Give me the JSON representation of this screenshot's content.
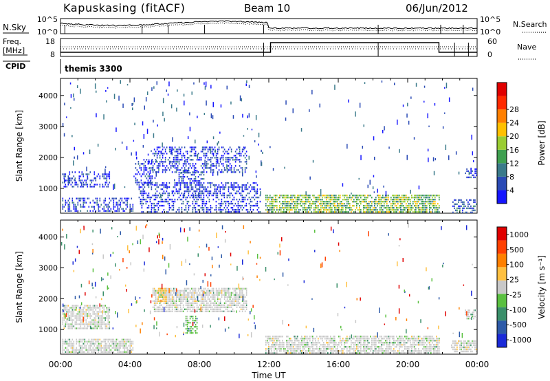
{
  "header": {
    "station": "Kapuskasing (fitACF)",
    "beam": "Beam 10",
    "date": "06/Jun/2012"
  },
  "top_panels": {
    "nsky_label": "N.Sky",
    "nsky_ticks": [
      "10^5",
      "10^0"
    ],
    "nsearch_label": "N.Search",
    "nsearch_ticks": [
      "10^5",
      "10^0"
    ],
    "freq_label": "Freq.",
    "freq_unit": "[MHz]",
    "freq_ticks": [
      "18",
      "8"
    ],
    "nave_label": "Nave",
    "nave_ticks": [
      "60",
      "0"
    ],
    "cpid_label": "CPID",
    "cpid_value": "themis 3300"
  },
  "chart_data": [
    {
      "type": "heatmap",
      "name": "power",
      "ylabel": "Slant Range [km]",
      "xlabel": "",
      "ylim": [
        200,
        4550
      ],
      "xlim": [
        0,
        24
      ],
      "yticks": [
        1000,
        2000,
        3000,
        4000
      ],
      "ytick_labels": [
        "1000",
        "2000",
        "3000",
        "4000"
      ],
      "colorbar": {
        "label": "Power [dB]",
        "ticks": [
          "4",
          "8",
          "12",
          "16",
          "20",
          "24",
          "28"
        ],
        "colors": [
          "#1515ff",
          "#2a4ab5",
          "#3a7a8a",
          "#3fa050",
          "#9acd32",
          "#ffc000",
          "#ff7f00",
          "#ff2a00",
          "#e00000"
        ]
      },
      "regions": [
        {
          "t0": 0.1,
          "t1": 2.8,
          "r0": 1050,
          "r1": 1550,
          "level": 1
        },
        {
          "t0": 0.1,
          "t1": 4.2,
          "r0": 250,
          "r1": 700,
          "level": 1
        },
        {
          "t0": 4.3,
          "t1": 5.3,
          "r0": 1100,
          "r1": 1950,
          "level": 1
        },
        {
          "t0": 5.3,
          "t1": 10.7,
          "r0": 1550,
          "r1": 2350,
          "level": 1
        },
        {
          "t0": 6.8,
          "t1": 8.3,
          "r0": 900,
          "r1": 1600,
          "level": 1
        },
        {
          "t0": 4.5,
          "t1": 11.5,
          "r0": 250,
          "r1": 1200,
          "level": 1
        },
        {
          "t0": 11.8,
          "t1": 21.8,
          "r0": 250,
          "r1": 800,
          "level": 4
        },
        {
          "t0": 22.5,
          "t1": 24.0,
          "r0": 250,
          "r1": 650,
          "level": 2
        },
        {
          "t0": 23.3,
          "t1": 24.0,
          "r0": 1350,
          "r1": 1650,
          "level": 1
        }
      ]
    },
    {
      "type": "heatmap",
      "name": "velocity",
      "ylabel": "Slant Range [km]",
      "xlabel": "Time UT",
      "ylim": [
        200,
        4550
      ],
      "xlim": [
        0,
        24
      ],
      "yticks": [
        1000,
        2000,
        3000,
        4000
      ],
      "ytick_labels": [
        "1000",
        "2000",
        "3000",
        "4000"
      ],
      "xticks": [
        0,
        4,
        8,
        12,
        16,
        20,
        24
      ],
      "xtick_labels": [
        "00:00",
        "04:00",
        "08:00",
        "12:00",
        "16:00",
        "20:00",
        "00:00"
      ],
      "colorbar": {
        "label": "Velocity [m s⁻¹]",
        "ticks": [
          "1000",
          "500",
          "100",
          "25",
          "-25",
          "-100",
          "-500",
          "-1000"
        ],
        "colors": [
          "#1a2ad8",
          "#2d5aa8",
          "#3a8f6a",
          "#5ac040",
          "#c8c8c8",
          "#ffc040",
          "#ff8000",
          "#ff4000",
          "#e00000"
        ]
      },
      "regions": [
        {
          "t0": 0.1,
          "t1": 2.8,
          "r0": 1050,
          "r1": 1800,
          "level": 4
        },
        {
          "t0": 0.1,
          "t1": 4.2,
          "r0": 250,
          "r1": 700,
          "level": 4
        },
        {
          "t0": 5.3,
          "t1": 10.7,
          "r0": 1550,
          "r1": 2350,
          "level": 4
        },
        {
          "t0": 5.6,
          "t1": 6.1,
          "r0": 1900,
          "r1": 2350,
          "level": 5
        },
        {
          "t0": 7.2,
          "t1": 7.9,
          "r0": 900,
          "r1": 1450,
          "level": 3
        },
        {
          "t0": 11.8,
          "t1": 21.8,
          "r0": 250,
          "r1": 800,
          "level": 4
        },
        {
          "t0": 22.5,
          "t1": 24.0,
          "r0": 250,
          "r1": 650,
          "level": 4
        },
        {
          "t0": 23.3,
          "t1": 24.0,
          "r0": 1350,
          "r1": 1650,
          "level": 4
        }
      ]
    }
  ]
}
